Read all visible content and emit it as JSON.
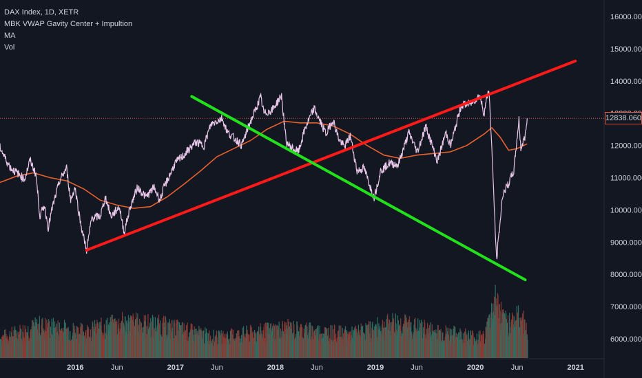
{
  "legend": {
    "symbol": "DAX Index, 1D, XETR",
    "indicator1": "MBK VWAP Gavity Center + Impultion",
    "indicator2": "MA",
    "indicator3": "Vol"
  },
  "last_price_label": "12838.060",
  "colors": {
    "background": "#131722",
    "price_line": "#e8c6e8",
    "ma_line": "#e8602c",
    "uptrend_line": "#ff1a1a",
    "downtrend_line": "#22e01c",
    "volume_up": "#2e6e62",
    "volume_down": "#8a3a34",
    "last_price_line": "#e0593e",
    "axis_text": "#d1d4dc"
  },
  "chart_data": {
    "type": "line",
    "title": "DAX Index, 1D, XETR",
    "y_axis_ticks": [
      "16000.000",
      "15000.000",
      "14000.000",
      "13000.000",
      "12000.000",
      "11000.000",
      "10000.000",
      "9000.000",
      "8000.000",
      "7000.000",
      "6000.000"
    ],
    "y_axis_values": [
      16000,
      15000,
      14000,
      13000,
      12000,
      11000,
      10000,
      9000,
      8000,
      7000,
      6000
    ],
    "x_axis_ticks": [
      {
        "label": "2016",
        "date": "2016-01-01"
      },
      {
        "label": "Jun",
        "date": "2016-06-01"
      },
      {
        "label": "2017",
        "date": "2017-01-01"
      },
      {
        "label": "Jun",
        "date": "2017-06-01"
      },
      {
        "label": "2018",
        "date": "2018-01-01"
      },
      {
        "label": "Jun",
        "date": "2018-06-01"
      },
      {
        "label": "2019",
        "date": "2019-01-01"
      },
      {
        "label": "Jun",
        "date": "2019-06-01"
      },
      {
        "label": "2020",
        "date": "2020-01-01"
      },
      {
        "label": "Jun",
        "date": "2020-06-01"
      },
      {
        "label": "2021",
        "date": "2021-01-01"
      }
    ],
    "ylim": [
      5500,
      16800
    ],
    "xlim": [
      "2015-04-01",
      "2021-04-15"
    ],
    "last_price": 12838.06,
    "series": [
      {
        "kind": "price",
        "points": [
          [
            "2015-04-01",
            11950
          ],
          [
            "2015-04-20",
            11600
          ],
          [
            "2015-05-10",
            11300
          ],
          [
            "2015-06-10",
            11100
          ],
          [
            "2015-06-30",
            10950
          ],
          [
            "2015-07-20",
            11550
          ],
          [
            "2015-08-10",
            11100
          ],
          [
            "2015-08-25",
            9800
          ],
          [
            "2015-09-10",
            10150
          ],
          [
            "2015-09-24",
            9450
          ],
          [
            "2015-10-10",
            10100
          ],
          [
            "2015-11-05",
            10900
          ],
          [
            "2015-11-30",
            11300
          ],
          [
            "2015-12-15",
            10300
          ],
          [
            "2015-12-31",
            10700
          ],
          [
            "2016-01-20",
            9600
          ],
          [
            "2016-02-11",
            8750
          ],
          [
            "2016-03-01",
            9750
          ],
          [
            "2016-04-01",
            9800
          ],
          [
            "2016-04-20",
            10400
          ],
          [
            "2016-05-10",
            9800
          ],
          [
            "2016-06-10",
            10100
          ],
          [
            "2016-06-27",
            9300
          ],
          [
            "2016-07-20",
            10100
          ],
          [
            "2016-08-15",
            10700
          ],
          [
            "2016-09-15",
            10400
          ],
          [
            "2016-10-15",
            10700
          ],
          [
            "2016-11-05",
            10300
          ],
          [
            "2016-11-20",
            10700
          ],
          [
            "2016-12-31",
            11450
          ],
          [
            "2017-02-01",
            11700
          ],
          [
            "2017-03-15",
            12100
          ],
          [
            "2017-04-15",
            12000
          ],
          [
            "2017-05-10",
            12650
          ],
          [
            "2017-06-20",
            12850
          ],
          [
            "2017-07-10",
            12400
          ],
          [
            "2017-08-20",
            12100
          ],
          [
            "2017-08-31",
            12000
          ],
          [
            "2017-09-25",
            12600
          ],
          [
            "2017-10-20",
            13100
          ],
          [
            "2017-11-08",
            13500
          ],
          [
            "2017-11-20",
            12990
          ],
          [
            "2017-12-20",
            13100
          ],
          [
            "2018-01-23",
            13550
          ],
          [
            "2018-02-09",
            12100
          ],
          [
            "2018-03-05",
            11900
          ],
          [
            "2018-03-26",
            11800
          ],
          [
            "2018-04-20",
            12550
          ],
          [
            "2018-05-22",
            13150
          ],
          [
            "2018-06-15",
            12700
          ],
          [
            "2018-07-05",
            12350
          ],
          [
            "2018-07-30",
            12800
          ],
          [
            "2018-08-20",
            12200
          ],
          [
            "2018-09-10",
            11950
          ],
          [
            "2018-10-01",
            12300
          ],
          [
            "2018-10-26",
            11200
          ],
          [
            "2018-11-20",
            11300
          ],
          [
            "2018-12-27",
            10380
          ],
          [
            "2019-01-20",
            11200
          ],
          [
            "2019-02-20",
            11450
          ],
          [
            "2019-03-25",
            11400
          ],
          [
            "2019-05-03",
            12400
          ],
          [
            "2019-06-03",
            11800
          ],
          [
            "2019-07-04",
            12600
          ],
          [
            "2019-08-15",
            11500
          ],
          [
            "2019-09-15",
            12400
          ],
          [
            "2019-10-03",
            12000
          ],
          [
            "2019-11-10",
            13250
          ],
          [
            "2019-12-15",
            13300
          ],
          [
            "2020-01-17",
            13550
          ],
          [
            "2020-02-01",
            13000
          ],
          [
            "2020-02-19",
            13780
          ],
          [
            "2020-03-01",
            11900
          ],
          [
            "2020-03-18",
            8440
          ],
          [
            "2020-04-10",
            10500
          ],
          [
            "2020-04-30",
            10800
          ],
          [
            "2020-05-20",
            11200
          ],
          [
            "2020-06-08",
            12800
          ],
          [
            "2020-06-15",
            11900
          ],
          [
            "2020-07-01",
            12300
          ],
          [
            "2020-07-08",
            12840
          ]
        ]
      },
      {
        "kind": "moving_average",
        "points": [
          [
            "2015-04-01",
            10850
          ],
          [
            "2015-06-01",
            11050
          ],
          [
            "2015-08-01",
            11150
          ],
          [
            "2015-10-01",
            11000
          ],
          [
            "2015-12-01",
            10900
          ],
          [
            "2016-02-01",
            10650
          ],
          [
            "2016-04-01",
            10300
          ],
          [
            "2016-06-01",
            10150
          ],
          [
            "2016-08-01",
            10050
          ],
          [
            "2016-10-01",
            10100
          ],
          [
            "2016-12-01",
            10400
          ],
          [
            "2017-02-01",
            10800
          ],
          [
            "2017-04-01",
            11200
          ],
          [
            "2017-06-01",
            11650
          ],
          [
            "2017-08-01",
            11900
          ],
          [
            "2017-10-01",
            12150
          ],
          [
            "2017-12-01",
            12500
          ],
          [
            "2018-02-01",
            12750
          ],
          [
            "2018-04-01",
            12700
          ],
          [
            "2018-06-01",
            12700
          ],
          [
            "2018-08-01",
            12600
          ],
          [
            "2018-10-01",
            12350
          ],
          [
            "2018-12-01",
            12000
          ],
          [
            "2019-02-01",
            11700
          ],
          [
            "2019-04-01",
            11600
          ],
          [
            "2019-06-01",
            11700
          ],
          [
            "2019-08-01",
            11750
          ],
          [
            "2019-10-01",
            11800
          ],
          [
            "2019-12-01",
            12000
          ],
          [
            "2020-02-01",
            12350
          ],
          [
            "2020-03-01",
            12550
          ],
          [
            "2020-04-01",
            12250
          ],
          [
            "2020-05-01",
            11850
          ],
          [
            "2020-06-01",
            11900
          ],
          [
            "2020-07-08",
            12050
          ]
        ]
      }
    ],
    "trendlines": [
      {
        "kind": "uptrend",
        "from": [
          "2016-02-11",
          8750
        ],
        "to": [
          "2020-12-31",
          14620
        ]
      },
      {
        "kind": "downtrend",
        "from": [
          "2017-03-01",
          13520
        ],
        "to": [
          "2020-07-01",
          7830
        ]
      }
    ],
    "volume": {
      "description_values_in_relative_units": true,
      "baseline_value": 0,
      "envelope": [
        [
          "2015-04-01",
          0.35
        ],
        [
          "2015-08-25",
          0.55
        ],
        [
          "2016-02-01",
          0.45
        ],
        [
          "2016-06-24",
          0.6
        ],
        [
          "2016-11-09",
          0.55
        ],
        [
          "2017-06-01",
          0.35
        ],
        [
          "2018-02-06",
          0.5
        ],
        [
          "2018-10-01",
          0.4
        ],
        [
          "2019-03-15",
          0.6
        ],
        [
          "2019-08-05",
          0.45
        ],
        [
          "2020-02-01",
          0.35
        ],
        [
          "2020-03-12",
          1.0
        ],
        [
          "2020-04-15",
          0.6
        ],
        [
          "2020-06-19",
          0.7
        ],
        [
          "2020-07-08",
          0.4
        ]
      ]
    }
  }
}
